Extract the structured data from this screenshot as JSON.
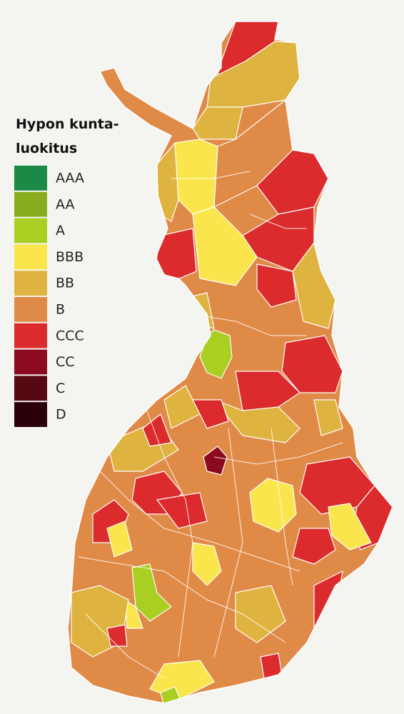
{
  "legend": {
    "title": [
      "Hypon kunta-",
      "luokitus"
    ],
    "items": [
      {
        "label": "AAA",
        "color": "#1b8a47"
      },
      {
        "label": "AA",
        "color": "#8aad1f"
      },
      {
        "label": "A",
        "color": "#a9cf22"
      },
      {
        "label": "BBB",
        "color": "#fae64c"
      },
      {
        "label": "BB",
        "color": "#dfb33f"
      },
      {
        "label": "B",
        "color": "#e08a48"
      },
      {
        "label": "CCC",
        "color": "#dc2b2d"
      },
      {
        "label": "CC",
        "color": "#8c0a1f"
      },
      {
        "label": "C",
        "color": "#560913"
      },
      {
        "label": "D",
        "color": "#2c0008"
      }
    ]
  }
}
